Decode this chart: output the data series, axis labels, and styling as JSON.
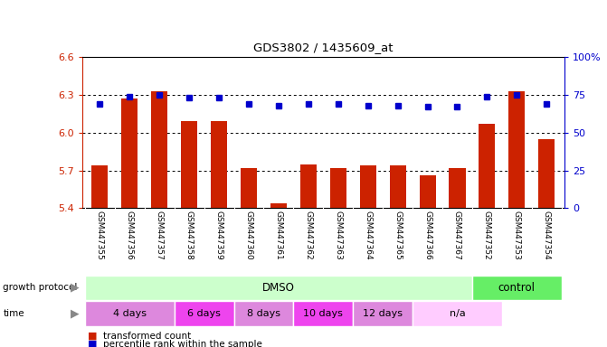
{
  "title": "GDS3802 / 1435609_at",
  "samples": [
    "GSM447355",
    "GSM447356",
    "GSM447357",
    "GSM447358",
    "GSM447359",
    "GSM447360",
    "GSM447361",
    "GSM447362",
    "GSM447363",
    "GSM447364",
    "GSM447365",
    "GSM447366",
    "GSM447367",
    "GSM447352",
    "GSM447353",
    "GSM447354"
  ],
  "bar_values": [
    5.74,
    6.27,
    6.33,
    6.09,
    6.09,
    5.72,
    5.44,
    5.75,
    5.72,
    5.74,
    5.74,
    5.66,
    5.72,
    6.07,
    6.33,
    5.95
  ],
  "percentile_values": [
    69,
    74,
    75,
    73,
    73,
    69,
    68,
    69,
    69,
    68,
    68,
    67,
    67,
    74,
    75,
    69
  ],
  "ylim_left": [
    5.4,
    6.6
  ],
  "ylim_right": [
    0,
    100
  ],
  "yticks_left": [
    5.4,
    5.7,
    6.0,
    6.3,
    6.6
  ],
  "yticks_right": [
    0,
    25,
    50,
    75,
    100
  ],
  "grid_lines": [
    5.7,
    6.0,
    6.3
  ],
  "bar_color": "#cc2200",
  "percentile_color": "#0000cc",
  "bg_color": "#ffffff",
  "axis_color_left": "#cc2200",
  "axis_color_right": "#0000cc",
  "growth_protocol_label": "growth protocol",
  "growth_protocol_dmso": "DMSO",
  "growth_protocol_control": "control",
  "dmso_color": "#ccffcc",
  "control_color": "#66ee66",
  "time_label": "time",
  "time_groups": [
    "4 days",
    "6 days",
    "8 days",
    "10 days",
    "12 days",
    "n/a"
  ],
  "time_colors": [
    "#dd88dd",
    "#ee44ee",
    "#dd88dd",
    "#ee44ee",
    "#dd88dd",
    "#ffccff"
  ],
  "time_spans": [
    3,
    2,
    2,
    2,
    2,
    3
  ],
  "dmso_n": 13,
  "control_n": 3,
  "sample_bg": "#cccccc",
  "legend_bar_label": "transformed count",
  "legend_pct_label": "percentile rank within the sample"
}
